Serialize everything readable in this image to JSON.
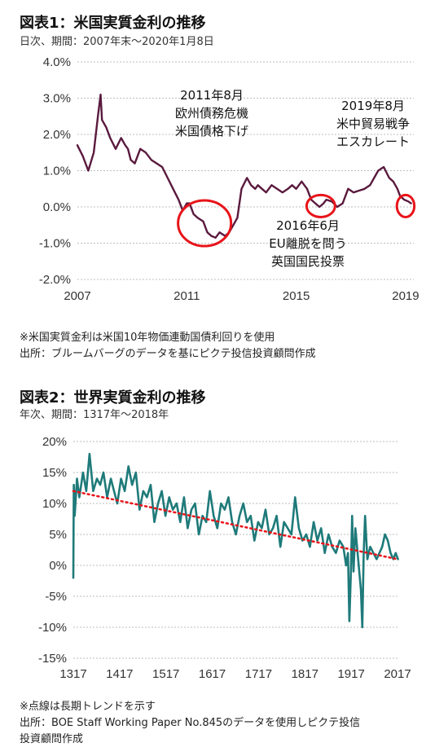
{
  "fig1": {
    "title": "図表1：米国実質金利の推移",
    "subtitle": "日次、期間：2007年末～2020年1月8日",
    "notes": [
      "※米国実質金利は米国10年物価連動国債利回りを使用",
      "出所：ブルームバーグのデータを基にピクテ投信投資顧問作成"
    ]
  },
  "fig2": {
    "title": "図表2：世界実質金利の推移",
    "subtitle": "年次、期間：1317年～2018年",
    "notes": [
      "※点線は長期トレンドを示す",
      "出所：BOE Staff Working Paper No.845のデータを使用しピクテ投信",
      "投資顧問作成"
    ]
  },
  "chart_data": [
    {
      "type": "line",
      "title": "図表1：米国実質金利の推移",
      "color": "#5a1a3e",
      "xlim": [
        2007,
        2019.3
      ],
      "ylim": [
        -2.0,
        4.0
      ],
      "x_ticks": [
        "2007",
        "2011",
        "2015",
        "2019"
      ],
      "x_tick_values": [
        2007,
        2011,
        2015,
        2019
      ],
      "y_ticks": [
        "4.0%",
        "3.0%",
        "2.0%",
        "1.0%",
        "0.0%",
        "-1.0%",
        "-2.0%"
      ],
      "y_tick_values": [
        4,
        3,
        2,
        1,
        0,
        -1,
        -2
      ],
      "series": [
        {
          "x": [
            2007.0,
            2007.2,
            2007.4,
            2007.6,
            2007.75,
            2007.85,
            2007.9,
            2008.05,
            2008.2,
            2008.4,
            2008.6,
            2008.75,
            2008.85,
            2008.95,
            2009.1,
            2009.3,
            2009.5,
            2009.7,
            2009.9,
            2010.1,
            2010.3,
            2010.5,
            2010.7,
            2010.85,
            2011.0,
            2011.1,
            2011.25,
            2011.4,
            2011.6,
            2011.75,
            2011.9,
            2012.05,
            2012.2,
            2012.4,
            2012.55,
            2012.7,
            2012.85,
            2013.0,
            2013.2,
            2013.35,
            2013.5,
            2013.6,
            2013.75,
            2013.9,
            2014.1,
            2014.3,
            2014.5,
            2014.7,
            2014.85,
            2015.0,
            2015.2,
            2015.4,
            2015.55,
            2015.7,
            2015.85,
            2016.0,
            2016.1,
            2016.3,
            2016.5,
            2016.7,
            2016.9,
            2017.1,
            2017.3,
            2017.5,
            2017.7,
            2017.85,
            2018.0,
            2018.2,
            2018.4,
            2018.55,
            2018.7,
            2018.8,
            2018.95,
            2019.1,
            2019.2
          ],
          "y": [
            1.7,
            1.4,
            1.0,
            1.5,
            2.5,
            3.1,
            2.4,
            2.2,
            1.9,
            1.6,
            1.9,
            1.7,
            1.6,
            1.3,
            1.2,
            1.6,
            1.5,
            1.3,
            1.2,
            1.1,
            0.8,
            0.5,
            0.2,
            -0.1,
            0.1,
            0.1,
            -0.2,
            -0.3,
            -0.4,
            -0.7,
            -0.8,
            -0.85,
            -0.7,
            -0.8,
            -0.7,
            -0.5,
            -0.3,
            0.5,
            0.8,
            0.6,
            0.5,
            0.6,
            0.5,
            0.4,
            0.6,
            0.5,
            0.4,
            0.5,
            0.6,
            0.5,
            0.7,
            0.5,
            0.2,
            0.1,
            0.0,
            0.1,
            0.2,
            0.15,
            0.0,
            0.1,
            0.5,
            0.4,
            0.45,
            0.5,
            0.6,
            0.8,
            1.0,
            1.1,
            0.8,
            0.7,
            0.5,
            0.3,
            0.2,
            0.15,
            0.1
          ]
        }
      ],
      "annotations": [
        {
          "lines": [
            "2011年8月",
            "欧州債務危機",
            "米国債格下げ"
          ]
        },
        {
          "lines": [
            "2016年6月",
            "EU離脱を問う",
            "英国国民投票"
          ]
        },
        {
          "lines": [
            "2019年8月",
            "米中貿易戦争",
            "エスカレート"
          ]
        }
      ],
      "highlight_ranges": [
        {
          "x": [
            2010.8,
            2012.5
          ],
          "y": [
            -0.9,
            0.0
          ]
        },
        {
          "x": [
            2015.5,
            2016.3
          ],
          "y": [
            -0.1,
            0.15
          ]
        },
        {
          "x": [
            2018.8,
            2019.2
          ],
          "y": [
            -0.1,
            0.15
          ]
        }
      ],
      "highlight_color": "#e8141a"
    },
    {
      "type": "line",
      "title": "図表2：世界実質金利の推移",
      "color": "#1f7a7a",
      "trend_color": "#e8141a",
      "xlim": [
        1317,
        2017
      ],
      "ylim": [
        -15,
        20
      ],
      "x_ticks": [
        "1317",
        "1417",
        "1517",
        "1617",
        "1717",
        "1817",
        "1917",
        "2017"
      ],
      "x_tick_values": [
        1317,
        1417,
        1517,
        1617,
        1717,
        1817,
        1917,
        2017
      ],
      "y_ticks": [
        "20%",
        "15%",
        "10%",
        "5%",
        "0%",
        "-5%",
        "-10%",
        "-15%"
      ],
      "y_tick_values": [
        20,
        15,
        10,
        5,
        0,
        -5,
        -10,
        -15
      ],
      "series": [
        {
          "name": "",
          "x": [
            1317,
            1318,
            1320,
            1325,
            1330,
            1338,
            1345,
            1352,
            1360,
            1368,
            1375,
            1382,
            1390,
            1398,
            1405,
            1412,
            1420,
            1428,
            1436,
            1444,
            1452,
            1460,
            1468,
            1476,
            1484,
            1492,
            1500,
            1508,
            1516,
            1524,
            1532,
            1540,
            1548,
            1556,
            1564,
            1572,
            1580,
            1588,
            1596,
            1604,
            1612,
            1620,
            1628,
            1636,
            1644,
            1652,
            1660,
            1668,
            1676,
            1684,
            1692,
            1700,
            1708,
            1716,
            1724,
            1732,
            1740,
            1748,
            1756,
            1764,
            1772,
            1780,
            1788,
            1796,
            1804,
            1812,
            1820,
            1828,
            1836,
            1844,
            1852,
            1860,
            1868,
            1876,
            1884,
            1892,
            1900,
            1906,
            1910,
            1913,
            1916,
            1919,
            1922,
            1926,
            1932,
            1938,
            1941,
            1944,
            1947,
            1952,
            1958,
            1965,
            1972,
            1978,
            1984,
            1990,
            1996,
            2002,
            2008,
            2013,
            2018
          ],
          "y": [
            -2,
            13,
            8,
            14,
            11,
            15,
            12,
            18,
            12,
            14,
            13,
            15,
            11,
            14,
            12,
            10,
            14,
            12,
            16,
            13,
            15,
            9,
            12,
            11,
            13,
            7,
            10,
            12,
            8,
            11,
            9,
            10,
            7,
            11,
            6,
            9,
            10,
            5,
            8,
            7,
            12,
            8,
            6,
            10,
            9,
            11,
            7,
            5,
            8,
            10,
            7,
            8,
            4,
            7,
            6,
            9,
            5,
            6,
            8,
            3,
            7,
            6,
            5,
            11,
            6,
            4,
            5,
            3,
            7,
            4,
            6,
            2,
            5,
            3,
            2,
            4,
            3,
            0,
            2,
            -9,
            -2,
            8,
            -1,
            6,
            1,
            -4,
            -10,
            2,
            8,
            1,
            3,
            2,
            1,
            2,
            3,
            5,
            4,
            2,
            1,
            2,
            1
          ]
        },
        {
          "name": "",
          "style": "dotted",
          "x": [
            1317,
            2017
          ],
          "y": [
            12,
            1
          ]
        }
      ]
    }
  ]
}
